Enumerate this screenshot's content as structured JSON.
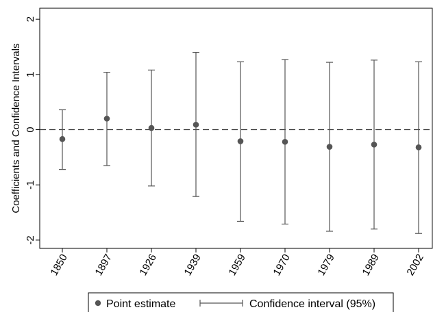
{
  "chart_data": {
    "type": "scatter",
    "title": "",
    "xlabel": "",
    "ylabel": "Coefficients and Confidence Intervals",
    "categories": [
      "1850",
      "1897",
      "1926",
      "1939",
      "1959",
      "1970",
      "1979",
      "1989",
      "2002"
    ],
    "series": [
      {
        "name": "Point estimate",
        "values": [
          -0.17,
          0.2,
          0.03,
          0.09,
          -0.21,
          -0.22,
          -0.31,
          -0.27,
          -0.32
        ]
      }
    ],
    "ci_series_name": "Confidence interval (95%)",
    "ci_lower": [
      -0.72,
      -0.65,
      -1.02,
      -1.21,
      -1.66,
      -1.71,
      -1.84,
      -1.8,
      -1.88
    ],
    "ci_upper": [
      0.36,
      1.04,
      1.08,
      1.4,
      1.23,
      1.27,
      1.22,
      1.26,
      1.23
    ],
    "ylim": [
      -2.15,
      2.2
    ],
    "yticks": [
      -2,
      -1,
      0,
      1,
      2
    ],
    "ytick_labels": [
      "-2",
      "-1",
      "0",
      "1",
      "2"
    ],
    "reference_line": 0,
    "grid": false,
    "legend_position": "bottom",
    "colors": {
      "marker": "#555555",
      "ci": "#555555",
      "reference": "#333333",
      "frame": "#000000"
    }
  }
}
